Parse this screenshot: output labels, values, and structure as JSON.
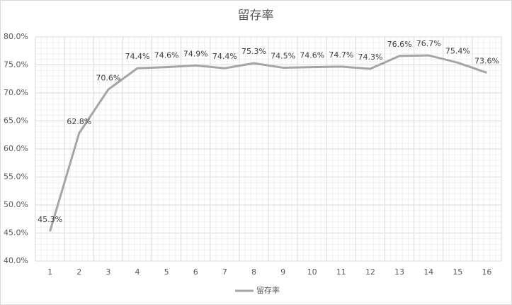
{
  "chart_data": {
    "type": "line",
    "title": "留存率",
    "categories": [
      "1",
      "2",
      "3",
      "4",
      "5",
      "6",
      "7",
      "8",
      "9",
      "10",
      "11",
      "12",
      "13",
      "14",
      "15",
      "16"
    ],
    "series": [
      {
        "name": "留存率",
        "color": "#a5a5a5",
        "values": [
          45.3,
          62.8,
          70.6,
          74.4,
          74.6,
          74.9,
          74.4,
          75.3,
          74.5,
          74.6,
          74.7,
          74.3,
          76.6,
          76.7,
          75.4,
          73.6
        ],
        "value_labels": [
          "45.3%",
          "62.8%",
          "70.6%",
          "74.4%",
          "74.6%",
          "74.9%",
          "74.4%",
          "75.3%",
          "74.5%",
          "74.6%",
          "74.7%",
          "74.3%",
          "76.6%",
          "76.7%",
          "75.4%",
          "73.6%"
        ]
      }
    ],
    "ylim": [
      40,
      80
    ],
    "yticks": [
      {
        "value": 40,
        "label": "40.0%"
      },
      {
        "value": 45,
        "label": "45.0%"
      },
      {
        "value": 50,
        "label": "50.0%"
      },
      {
        "value": 55,
        "label": "55.0%"
      },
      {
        "value": 60,
        "label": "60.0%"
      },
      {
        "value": 65,
        "label": "65.0%"
      },
      {
        "value": 70,
        "label": "70.0%"
      },
      {
        "value": 75,
        "label": "75.0%"
      },
      {
        "value": 80,
        "label": "80.0%"
      }
    ],
    "grid": true,
    "minor_grid": true,
    "legend": "bottom"
  }
}
